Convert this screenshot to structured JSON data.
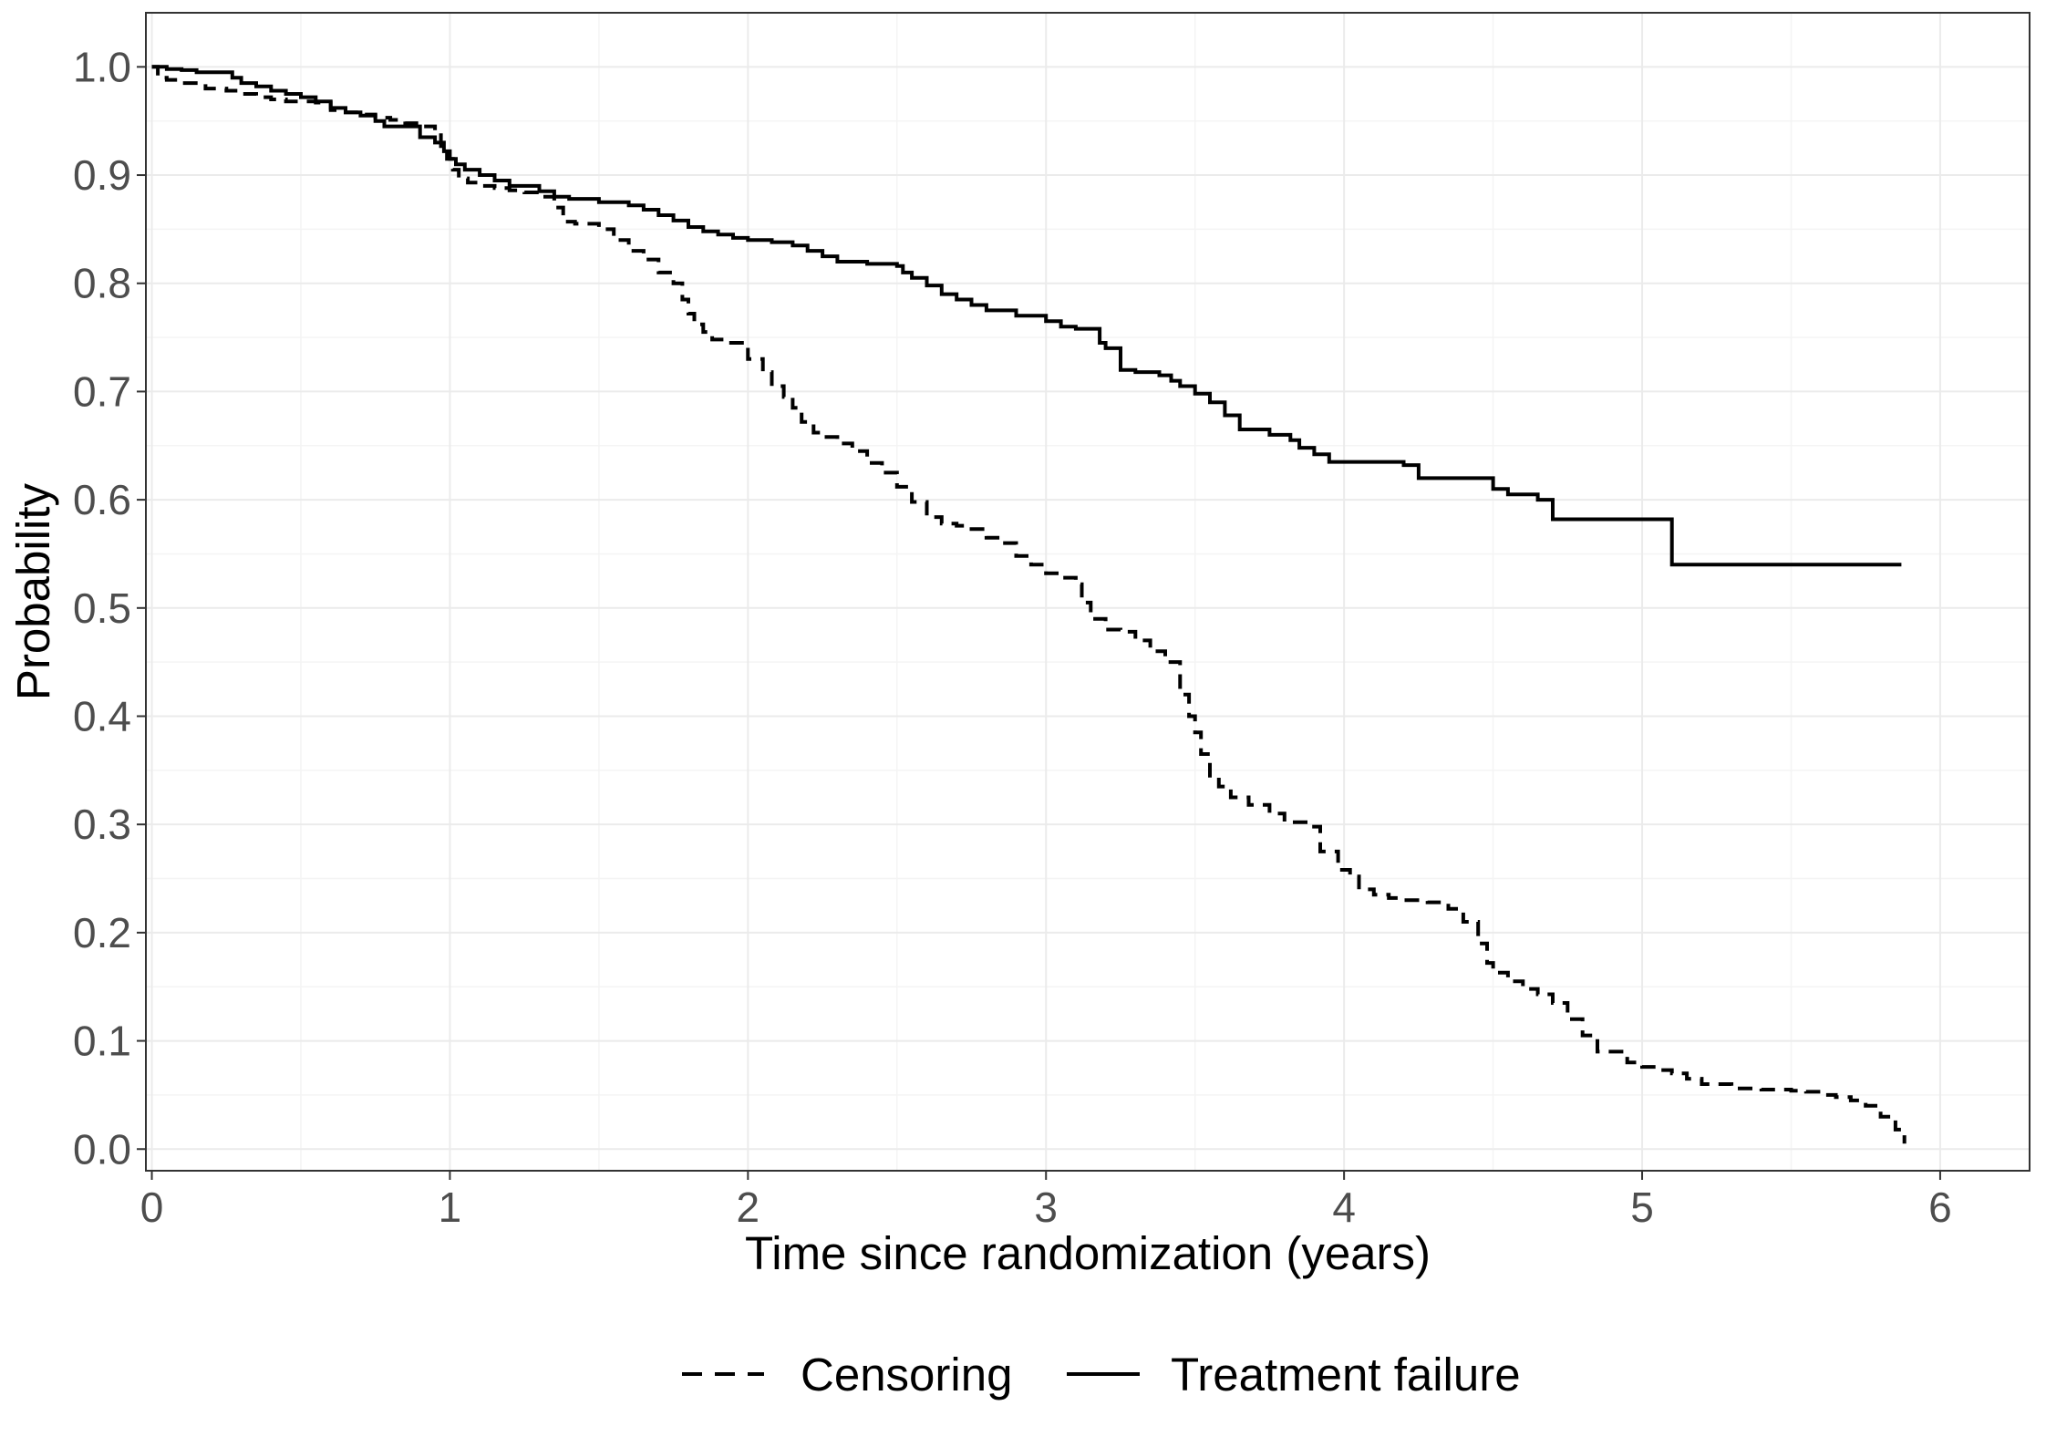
{
  "chart_data": {
    "type": "line",
    "step": true,
    "title": "",
    "xlabel": "Time since randomization (years)",
    "ylabel": "Probability",
    "xlim": [
      -0.02,
      6.3
    ],
    "ylim": [
      -0.02,
      1.05
    ],
    "xticks": [
      0,
      1,
      2,
      3,
      4,
      5,
      6
    ],
    "xtick_labels": [
      "0",
      "1",
      "2",
      "3",
      "4",
      "5",
      "6"
    ],
    "yticks": [
      0.0,
      0.1,
      0.2,
      0.3,
      0.4,
      0.5,
      0.6,
      0.7,
      0.8,
      0.9,
      1.0
    ],
    "ytick_labels": [
      "0.0",
      "0.1",
      "0.2",
      "0.3",
      "0.4",
      "0.5",
      "0.6",
      "0.7",
      "0.8",
      "0.9",
      "1.0"
    ],
    "grid": true,
    "legend_position": "bottom",
    "colors": {
      "line": "#000000",
      "grid_major": "#ebebeb",
      "grid_minor": "#f4f4f4",
      "panel_border": "#333333",
      "tick_text": "#4d4d4d"
    },
    "series": [
      {
        "name": "Censoring",
        "linestyle": "dashed",
        "x": [
          0.0,
          0.02,
          0.05,
          0.1,
          0.18,
          0.25,
          0.3,
          0.35,
          0.4,
          0.45,
          0.5,
          0.55,
          0.6,
          0.65,
          0.7,
          0.75,
          0.8,
          0.85,
          0.9,
          0.95,
          0.97,
          0.99,
          1.01,
          1.03,
          1.06,
          1.1,
          1.15,
          1.2,
          1.25,
          1.3,
          1.35,
          1.38,
          1.42,
          1.5,
          1.55,
          1.6,
          1.65,
          1.7,
          1.75,
          1.78,
          1.8,
          1.82,
          1.85,
          1.88,
          1.92,
          2.0,
          2.05,
          2.08,
          2.12,
          2.15,
          2.18,
          2.22,
          2.25,
          2.3,
          2.35,
          2.4,
          2.45,
          2.5,
          2.55,
          2.6,
          2.65,
          2.7,
          2.75,
          2.8,
          2.85,
          2.9,
          2.95,
          3.0,
          3.05,
          3.1,
          3.12,
          3.15,
          3.2,
          3.25,
          3.3,
          3.35,
          3.4,
          3.45,
          3.48,
          3.5,
          3.52,
          3.55,
          3.58,
          3.62,
          3.68,
          3.75,
          3.8,
          3.88,
          3.92,
          3.98,
          4.02,
          4.05,
          4.1,
          4.15,
          4.2,
          4.28,
          4.35,
          4.4,
          4.45,
          4.48,
          4.5,
          4.55,
          4.6,
          4.65,
          4.7,
          4.75,
          4.8,
          4.85,
          4.95,
          5.0,
          5.05,
          5.1,
          5.15,
          5.2,
          5.3,
          5.4,
          5.5,
          5.55,
          5.6,
          5.65,
          5.7,
          5.75,
          5.8,
          5.85,
          5.88
        ],
        "y": [
          1.0,
          0.99,
          0.988,
          0.985,
          0.98,
          0.978,
          0.975,
          0.972,
          0.97,
          0.968,
          0.968,
          0.967,
          0.96,
          0.958,
          0.956,
          0.953,
          0.951,
          0.948,
          0.945,
          0.94,
          0.925,
          0.915,
          0.905,
          0.897,
          0.893,
          0.89,
          0.888,
          0.886,
          0.884,
          0.88,
          0.87,
          0.857,
          0.855,
          0.85,
          0.84,
          0.83,
          0.822,
          0.81,
          0.8,
          0.785,
          0.772,
          0.762,
          0.755,
          0.748,
          0.745,
          0.73,
          0.718,
          0.705,
          0.695,
          0.685,
          0.672,
          0.662,
          0.658,
          0.652,
          0.645,
          0.634,
          0.625,
          0.612,
          0.598,
          0.584,
          0.578,
          0.576,
          0.573,
          0.565,
          0.56,
          0.548,
          0.54,
          0.532,
          0.528,
          0.522,
          0.505,
          0.49,
          0.48,
          0.478,
          0.47,
          0.46,
          0.45,
          0.42,
          0.4,
          0.385,
          0.365,
          0.345,
          0.335,
          0.325,
          0.318,
          0.31,
          0.302,
          0.298,
          0.275,
          0.258,
          0.252,
          0.24,
          0.235,
          0.232,
          0.23,
          0.228,
          0.222,
          0.21,
          0.19,
          0.172,
          0.163,
          0.155,
          0.148,
          0.143,
          0.135,
          0.12,
          0.105,
          0.09,
          0.08,
          0.076,
          0.073,
          0.07,
          0.065,
          0.06,
          0.056,
          0.055,
          0.054,
          0.053,
          0.05,
          0.048,
          0.045,
          0.04,
          0.03,
          0.018,
          0.005
        ]
      },
      {
        "name": "Treatment failure",
        "linestyle": "solid",
        "x": [
          0.0,
          0.05,
          0.1,
          0.15,
          0.27,
          0.3,
          0.35,
          0.4,
          0.45,
          0.5,
          0.55,
          0.6,
          0.65,
          0.7,
          0.75,
          0.78,
          0.9,
          0.95,
          0.98,
          1.0,
          1.02,
          1.05,
          1.1,
          1.15,
          1.2,
          1.3,
          1.35,
          1.4,
          1.5,
          1.6,
          1.65,
          1.7,
          1.75,
          1.8,
          1.85,
          1.9,
          1.95,
          2.0,
          2.08,
          2.15,
          2.2,
          2.25,
          2.3,
          2.35,
          2.4,
          2.5,
          2.52,
          2.55,
          2.6,
          2.65,
          2.7,
          2.75,
          2.8,
          2.9,
          3.0,
          3.05,
          3.1,
          3.18,
          3.2,
          3.25,
          3.3,
          3.38,
          3.42,
          3.45,
          3.5,
          3.55,
          3.6,
          3.65,
          3.75,
          3.82,
          3.85,
          3.9,
          3.95,
          4.2,
          4.25,
          4.5,
          4.55,
          4.65,
          4.7,
          5.0,
          5.08,
          5.1,
          5.87
        ],
        "y": [
          1.0,
          0.998,
          0.997,
          0.995,
          0.99,
          0.985,
          0.982,
          0.978,
          0.975,
          0.972,
          0.968,
          0.962,
          0.958,
          0.955,
          0.95,
          0.945,
          0.935,
          0.93,
          0.922,
          0.915,
          0.91,
          0.905,
          0.9,
          0.895,
          0.89,
          0.885,
          0.88,
          0.878,
          0.875,
          0.872,
          0.868,
          0.863,
          0.858,
          0.852,
          0.848,
          0.845,
          0.842,
          0.84,
          0.838,
          0.835,
          0.83,
          0.825,
          0.82,
          0.82,
          0.818,
          0.816,
          0.81,
          0.805,
          0.798,
          0.79,
          0.785,
          0.78,
          0.775,
          0.77,
          0.765,
          0.76,
          0.758,
          0.745,
          0.74,
          0.72,
          0.718,
          0.715,
          0.71,
          0.705,
          0.698,
          0.69,
          0.678,
          0.665,
          0.66,
          0.655,
          0.648,
          0.642,
          0.635,
          0.632,
          0.62,
          0.61,
          0.605,
          0.6,
          0.582,
          0.582,
          0.582,
          0.54,
          0.54
        ]
      }
    ]
  }
}
